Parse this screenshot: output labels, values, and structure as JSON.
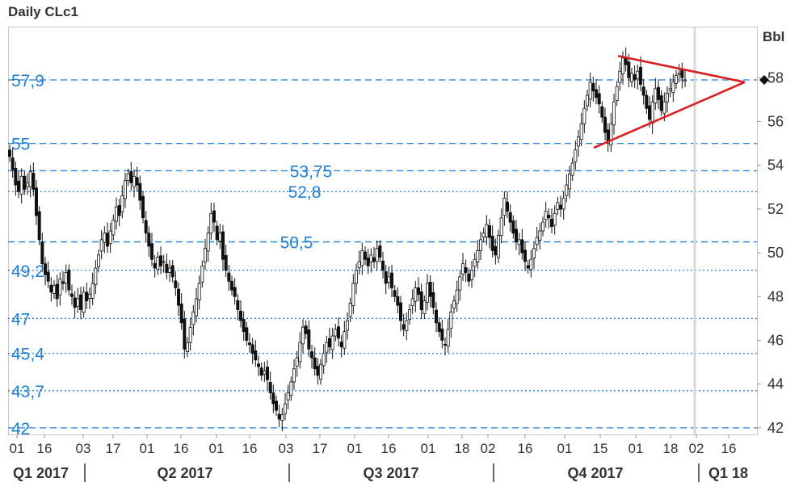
{
  "chart_data": {
    "type": "candlestick",
    "title": "Daily CLc1",
    "y_unit_label": "Bbl",
    "ylim": [
      41.7,
      60.3
    ],
    "y_ticks": [
      42,
      44,
      46,
      48,
      50,
      52,
      54,
      56,
      58
    ],
    "last_price_marker": 57.9,
    "levels": [
      {
        "value": 57.9,
        "label": "57,9",
        "style": "dashed",
        "label_pos": "left"
      },
      {
        "value": 55,
        "label": "55",
        "style": "dashed",
        "label_pos": "left"
      },
      {
        "value": 53.75,
        "label": "53,75",
        "style": "dashed",
        "label_pos": "center"
      },
      {
        "value": 52.8,
        "label": "52,8",
        "style": "dotted",
        "label_pos": "center"
      },
      {
        "value": 50.5,
        "label": "50,5",
        "style": "dashed",
        "label_pos": "center"
      },
      {
        "value": 49.2,
        "label": "49,2",
        "style": "dotted",
        "label_pos": "left"
      },
      {
        "value": 47,
        "label": "47",
        "style": "dotted",
        "label_pos": "left"
      },
      {
        "value": 45.4,
        "label": "45,4",
        "style": "dotted",
        "label_pos": "left"
      },
      {
        "value": 43.7,
        "label": "43,7",
        "style": "dotted",
        "label_pos": "left"
      },
      {
        "value": 42,
        "label": "42",
        "style": "dashed",
        "label_pos": "left"
      }
    ],
    "x_ticks": [
      "01",
      "16",
      "03",
      "17",
      "01",
      "16",
      "01",
      "16",
      "03",
      "17",
      "01",
      "16",
      "01",
      "18",
      "02",
      "16",
      "01",
      "15",
      "01",
      "18",
      "02",
      "16"
    ],
    "quarters": [
      "Q1 2017",
      "Q2 2017",
      "Q3 2017",
      "Q4 2017",
      "Q1 18"
    ],
    "triangle": {
      "upper": [
        59.0,
        57.8
      ],
      "lower": [
        54.8,
        57.8
      ],
      "color": "#d92020"
    },
    "closes": [
      54.4,
      53.8,
      53.1,
      52.8,
      53.5,
      52.9,
      53.2,
      53.7,
      52.9,
      51.7,
      50.6,
      49.5,
      49.0,
      48.7,
      48.2,
      48.5,
      47.9,
      48.8,
      48.6,
      49.1,
      48.3,
      48.0,
      47.5,
      47.9,
      47.4,
      48.2,
      47.8,
      48.1,
      48.6,
      49.3,
      49.9,
      50.6,
      50.9,
      50.3,
      51.0,
      51.5,
      52.1,
      51.7,
      52.6,
      53.3,
      53.6,
      53.2,
      53.5,
      53.1,
      52.4,
      51.6,
      50.9,
      50.3,
      49.7,
      49.3,
      49.8,
      49.4,
      49.6,
      49.1,
      49.3,
      48.9,
      48.4,
      47.6,
      46.8,
      45.6,
      45.9,
      46.6,
      47.3,
      47.9,
      48.6,
      49.4,
      50.2,
      50.9,
      51.8,
      51.4,
      50.6,
      50.9,
      49.7,
      49.2,
      48.7,
      48.3,
      48.0,
      47.4,
      46.9,
      46.4,
      46.0,
      45.8,
      45.4,
      45.1,
      44.8,
      44.4,
      44.6,
      44.2,
      43.6,
      43.1,
      42.8,
      42.4,
      42.6,
      43.1,
      43.6,
      44.1,
      44.7,
      45.2,
      45.9,
      46.6,
      46.3,
      45.6,
      45.2,
      44.7,
      44.4,
      44.9,
      45.4,
      45.9,
      45.7,
      46.2,
      46.5,
      46.1,
      45.7,
      46.4,
      46.9,
      47.7,
      48.6,
      49.2,
      49.6,
      50.1,
      49.7,
      49.4,
      49.9,
      49.6,
      50.2,
      49.8,
      49.2,
      48.6,
      48.9,
      48.4,
      48.0,
      47.6,
      46.9,
      46.5,
      46.9,
      47.4,
      47.9,
      48.4,
      48.1,
      47.4,
      47.8,
      48.6,
      48.0,
      47.5,
      46.8,
      46.4,
      46.0,
      45.8,
      46.5,
      47.3,
      47.8,
      48.3,
      48.9,
      49.5,
      49.1,
      48.7,
      49.2,
      49.7,
      50.1,
      50.6,
      50.9,
      51.3,
      50.7,
      50.1,
      49.9,
      50.8,
      51.6,
      52.5,
      51.9,
      51.4,
      50.9,
      50.5,
      50.6,
      50.0,
      49.6,
      49.3,
      49.7,
      50.2,
      50.7,
      51.0,
      51.4,
      51.9,
      51.6,
      51.2,
      51.8,
      52.3,
      52.0,
      52.5,
      53.1,
      53.6,
      54.1,
      54.7,
      55.3,
      55.9,
      56.6,
      57.2,
      57.8,
      57.4,
      57.1,
      56.8,
      56.2,
      55.5,
      55.1,
      55.9,
      56.9,
      57.6,
      58.3,
      58.9,
      58.6,
      58.0,
      58.2,
      57.9,
      58.3,
      57.7,
      57.2,
      56.6,
      56.1,
      56.9,
      57.5,
      57.0,
      56.5,
      56.9,
      57.3,
      57.5,
      57.8,
      58.1,
      58.2,
      58.0,
      57.9
    ]
  }
}
